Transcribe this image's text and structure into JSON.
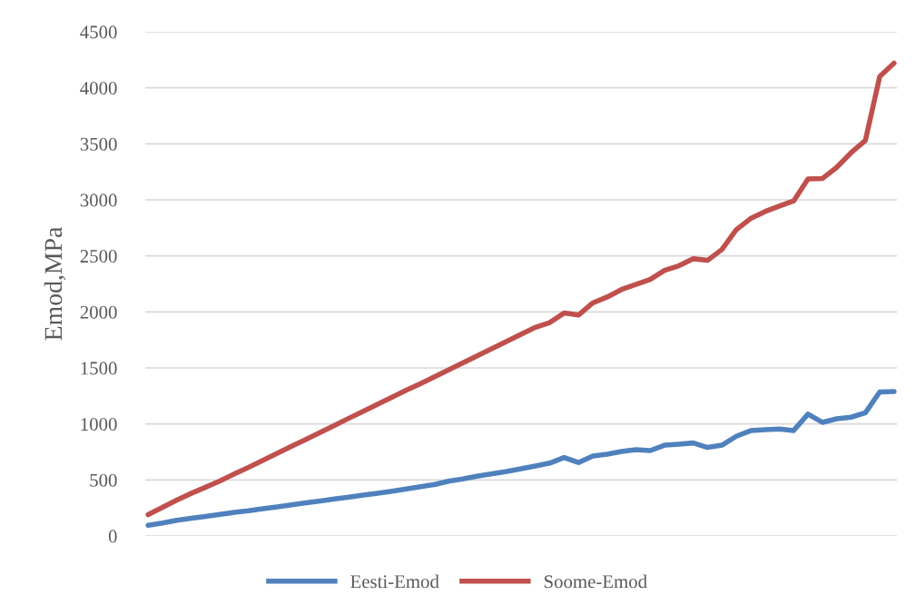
{
  "chart_data": {
    "type": "line",
    "ylabel": "Emod,MPa",
    "categories": [
      null,
      null,
      null,
      null,
      null,
      null,
      null,
      null,
      null,
      null,
      null,
      null,
      null,
      null,
      null,
      null,
      null,
      null,
      null,
      null,
      null,
      null,
      null,
      null,
      null,
      null,
      null,
      null,
      null,
      null,
      null,
      null,
      null,
      null,
      null,
      null,
      null,
      null,
      null,
      null,
      null,
      null,
      null,
      null,
      null,
      null,
      null,
      null,
      null,
      null,
      null,
      null,
      null
    ],
    "series": [
      {
        "name": "Eesti-Emod",
        "color": "#4f81bd",
        "values": [
          95,
          115,
          140,
          158,
          175,
          192,
          210,
          225,
          243,
          260,
          278,
          295,
          312,
          330,
          347,
          365,
          382,
          400,
          420,
          440,
          460,
          490,
          510,
          535,
          555,
          575,
          600,
          625,
          650,
          700,
          655,
          714,
          730,
          754,
          770,
          762,
          810,
          819,
          830,
          790,
          810,
          890,
          940,
          949,
          955,
          941,
          1087,
          1014,
          1046,
          1060,
          1100,
          1285,
          1289
        ]
      },
      {
        "name": "Soome-Emod",
        "color": "#c0504d",
        "values": [
          190,
          255,
          320,
          380,
          435,
          490,
          553,
          612,
          674,
          737,
          800,
          862,
          925,
          988,
          1051,
          1113,
          1176,
          1239,
          1301,
          1360,
          1423,
          1486,
          1548,
          1611,
          1674,
          1737,
          1799,
          1862,
          1905,
          1990,
          1972,
          2080,
          2133,
          2200,
          2245,
          2290,
          2370,
          2412,
          2474,
          2460,
          2557,
          2733,
          2833,
          2895,
          2944,
          2990,
          3187,
          3190,
          3290,
          3420,
          3530,
          4100,
          4220
        ]
      }
    ],
    "ylim": [
      0,
      4500
    ],
    "yticks": [
      0,
      500,
      1000,
      1500,
      2000,
      2500,
      3000,
      3500,
      4000,
      4500
    ],
    "grid": "y",
    "legend": "bottom",
    "marker": "none",
    "line_style": "solid",
    "tick_labels": "y"
  }
}
